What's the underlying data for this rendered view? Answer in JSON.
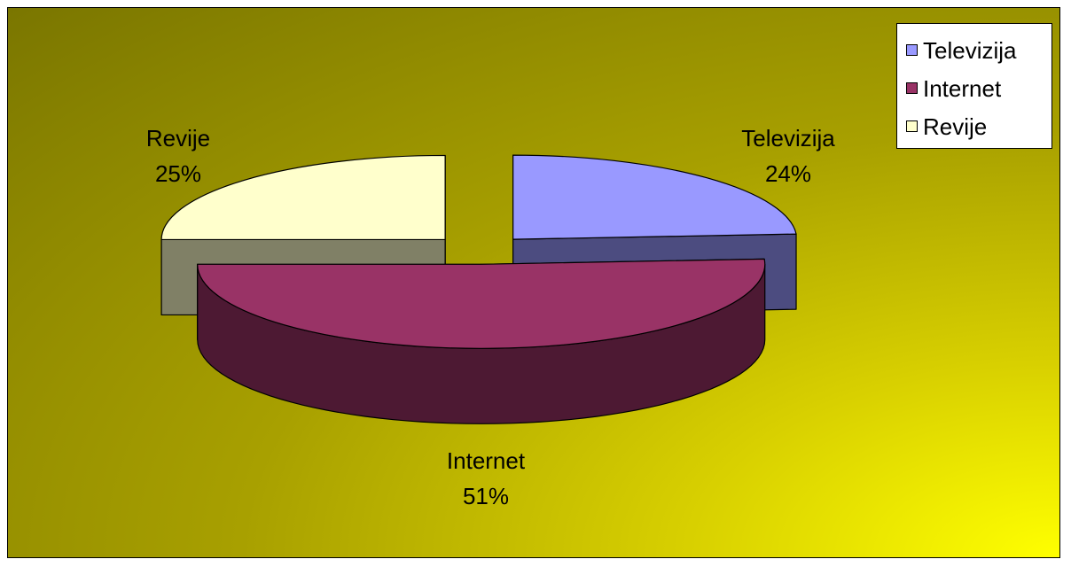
{
  "chart_data": {
    "type": "pie",
    "style": "3d-exploded",
    "categories": [
      "Televizija",
      "Internet",
      "Revije"
    ],
    "values": [
      24,
      51,
      25
    ],
    "value_unit": "%",
    "colors": [
      "#9999ff",
      "#993366",
      "#ffffcc"
    ],
    "side_colors": [
      "#4c4c80",
      "#4d1933",
      "#808066"
    ],
    "labels": [
      {
        "name": "Televizija",
        "percent": "24%"
      },
      {
        "name": "Internet",
        "percent": "51%"
      },
      {
        "name": "Revije",
        "percent": "25%"
      }
    ],
    "legend_position": "top-right",
    "legend": [
      "Televizija",
      "Internet",
      "Revije"
    ],
    "background": "yellow-olive gradient"
  }
}
